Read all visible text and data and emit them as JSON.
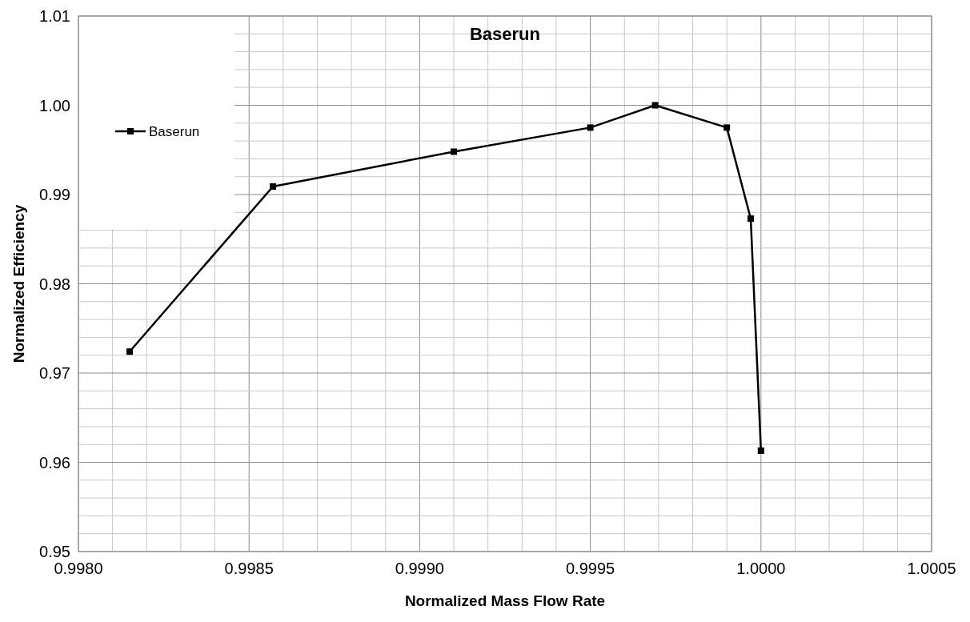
{
  "chart_data": {
    "type": "line",
    "title": "Baserun",
    "xlabel": "Normalized Mass Flow Rate",
    "ylabel": "Normalized Efficiency",
    "x": [
      0.99815,
      0.99857,
      0.9991,
      0.9995,
      0.99969,
      0.9999,
      0.99997,
      1.0
    ],
    "series": [
      {
        "name": "Baserun",
        "color": "#000000",
        "values": [
          0.9724,
          0.9909,
          0.9948,
          0.9975,
          1.0,
          0.9975,
          0.9873,
          0.9613
        ]
      }
    ],
    "xlim": [
      0.998,
      1.0005
    ],
    "xticks": [
      {
        "value": 0.998,
        "label": "0.9980"
      },
      {
        "value": 0.9981,
        "label": null
      },
      {
        "value": 0.9982,
        "label": null
      },
      {
        "value": 0.9983,
        "label": null
      },
      {
        "value": 0.9984,
        "label": null
      },
      {
        "value": 0.9985,
        "label": "0.9985"
      },
      {
        "value": 0.9986,
        "label": null
      },
      {
        "value": 0.9987,
        "label": null
      },
      {
        "value": 0.9988,
        "label": null
      },
      {
        "value": 0.9989,
        "label": null
      },
      {
        "value": 0.999,
        "label": "0.9990"
      },
      {
        "value": 0.9991,
        "label": null
      },
      {
        "value": 0.9992,
        "label": null
      },
      {
        "value": 0.9993,
        "label": null
      },
      {
        "value": 0.9994,
        "label": null
      },
      {
        "value": 0.9995,
        "label": "0.9995"
      },
      {
        "value": 0.9996,
        "label": null
      },
      {
        "value": 0.9997,
        "label": null
      },
      {
        "value": 0.9998,
        "label": null
      },
      {
        "value": 0.9999,
        "label": null
      },
      {
        "value": 1.0,
        "label": "1.0000"
      },
      {
        "value": 1.0001,
        "label": null
      },
      {
        "value": 1.0002,
        "label": null
      },
      {
        "value": 1.0003,
        "label": null
      },
      {
        "value": 1.0004,
        "label": null
      },
      {
        "value": 1.0005,
        "label": "1.0005"
      }
    ],
    "ylim": [
      0.95,
      1.01
    ],
    "yticks": [
      {
        "value": 0.95,
        "label": "0.95"
      },
      {
        "value": 0.952,
        "label": null
      },
      {
        "value": 0.954,
        "label": null
      },
      {
        "value": 0.956,
        "label": null
      },
      {
        "value": 0.958,
        "label": null
      },
      {
        "value": 0.96,
        "label": "0.96"
      },
      {
        "value": 0.962,
        "label": null
      },
      {
        "value": 0.964,
        "label": null
      },
      {
        "value": 0.966,
        "label": null
      },
      {
        "value": 0.968,
        "label": null
      },
      {
        "value": 0.97,
        "label": "0.97"
      },
      {
        "value": 0.972,
        "label": null
      },
      {
        "value": 0.974,
        "label": null
      },
      {
        "value": 0.976,
        "label": null
      },
      {
        "value": 0.978,
        "label": null
      },
      {
        "value": 0.98,
        "label": "0.98"
      },
      {
        "value": 0.982,
        "label": null
      },
      {
        "value": 0.984,
        "label": null
      },
      {
        "value": 0.986,
        "label": null
      },
      {
        "value": 0.988,
        "label": null
      },
      {
        "value": 0.99,
        "label": "0.99"
      },
      {
        "value": 0.992,
        "label": null
      },
      {
        "value": 0.994,
        "label": null
      },
      {
        "value": 0.996,
        "label": null
      },
      {
        "value": 0.998,
        "label": null
      },
      {
        "value": 1.0,
        "label": "1.00"
      },
      {
        "value": 1.002,
        "label": null
      },
      {
        "value": 1.004,
        "label": null
      },
      {
        "value": 1.006,
        "label": null
      },
      {
        "value": 1.008,
        "label": null
      },
      {
        "value": 1.01,
        "label": "1.01"
      }
    ],
    "grid": true,
    "legend": "top left",
    "marker": "square",
    "line_style": "solid"
  }
}
